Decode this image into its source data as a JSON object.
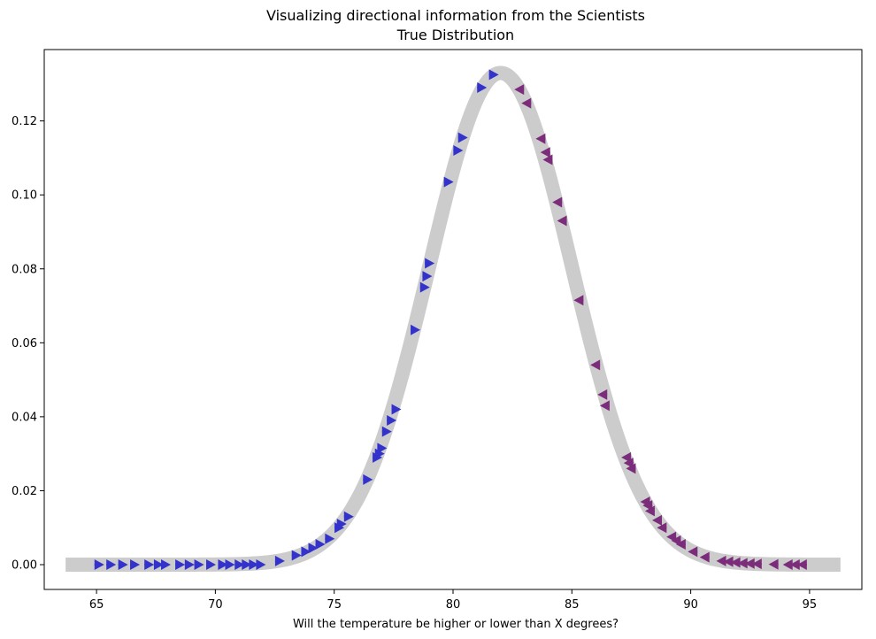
{
  "chart_data": {
    "type": "line",
    "title": "Visualizing directional information from the Scientists",
    "subtitle": "True Distribution",
    "xlabel": "Will the temperature be higher or lower than X degrees?",
    "ylabel": "",
    "xlim": [
      62.8,
      97.2
    ],
    "ylim": [
      -0.0067,
      0.1393
    ],
    "x_ticks": [
      65,
      70,
      75,
      80,
      85,
      90,
      95
    ],
    "y_ticks": [
      0.0,
      0.02,
      0.04,
      0.06,
      0.08,
      0.1,
      0.12
    ],
    "x_tick_labels": [
      "65",
      "70",
      "75",
      "80",
      "85",
      "90",
      "95"
    ],
    "y_tick_labels": [
      "0.00",
      "0.02",
      "0.04",
      "0.06",
      "0.08",
      "0.10",
      "0.12"
    ],
    "grid": false,
    "curve": {
      "kind": "normal-pdf",
      "mean": 82,
      "sd": 3,
      "x_range": [
        63.7,
        96.3
      ],
      "color": "#cccccc"
    },
    "series": [
      {
        "direction": "right",
        "color": "#3333cc",
        "points": [
          {
            "x": 65.1,
            "y": 0.0
          },
          {
            "x": 65.6,
            "y": 0.0
          },
          {
            "x": 66.1,
            "y": 0.0
          },
          {
            "x": 66.6,
            "y": 0.0
          },
          {
            "x": 67.2,
            "y": 0.0
          },
          {
            "x": 67.6,
            "y": 0.0
          },
          {
            "x": 67.9,
            "y": 0.0
          },
          {
            "x": 68.5,
            "y": 0.0
          },
          {
            "x": 68.9,
            "y": 0.0
          },
          {
            "x": 69.3,
            "y": 0.0
          },
          {
            "x": 69.8,
            "y": 0.0
          },
          {
            "x": 70.3,
            "y": 0.0
          },
          {
            "x": 70.6,
            "y": 0.0
          },
          {
            "x": 71.0,
            "y": 0.0
          },
          {
            "x": 71.3,
            "y": 0.0
          },
          {
            "x": 71.6,
            "y": 0.0
          },
          {
            "x": 71.9,
            "y": 0.0
          },
          {
            "x": 72.7,
            "y": 0.001
          },
          {
            "x": 73.4,
            "y": 0.0025
          },
          {
            "x": 73.8,
            "y": 0.0035
          },
          {
            "x": 74.1,
            "y": 0.0045
          },
          {
            "x": 74.4,
            "y": 0.0055
          },
          {
            "x": 74.8,
            "y": 0.007
          },
          {
            "x": 75.2,
            "y": 0.01
          },
          {
            "x": 75.3,
            "y": 0.011
          },
          {
            "x": 75.6,
            "y": 0.013
          },
          {
            "x": 76.4,
            "y": 0.023
          },
          {
            "x": 76.8,
            "y": 0.029
          },
          {
            "x": 76.9,
            "y": 0.03
          },
          {
            "x": 77.0,
            "y": 0.0315
          },
          {
            "x": 77.2,
            "y": 0.036
          },
          {
            "x": 77.4,
            "y": 0.039
          },
          {
            "x": 77.6,
            "y": 0.042
          },
          {
            "x": 78.4,
            "y": 0.0635
          },
          {
            "x": 78.8,
            "y": 0.075
          },
          {
            "x": 78.9,
            "y": 0.078
          },
          {
            "x": 79.0,
            "y": 0.0815
          },
          {
            "x": 79.8,
            "y": 0.1035
          },
          {
            "x": 80.2,
            "y": 0.112
          },
          {
            "x": 80.4,
            "y": 0.1155
          },
          {
            "x": 81.2,
            "y": 0.129
          },
          {
            "x": 81.7,
            "y": 0.1325
          }
        ]
      },
      {
        "direction": "left",
        "color": "#7b2d7b",
        "points": [
          {
            "x": 82.8,
            "y": 0.1285
          },
          {
            "x": 83.1,
            "y": 0.1248
          },
          {
            "x": 83.7,
            "y": 0.1152
          },
          {
            "x": 83.9,
            "y": 0.1115
          },
          {
            "x": 84.0,
            "y": 0.1095
          },
          {
            "x": 84.4,
            "y": 0.098
          },
          {
            "x": 84.6,
            "y": 0.093
          },
          {
            "x": 85.3,
            "y": 0.0715
          },
          {
            "x": 86.0,
            "y": 0.054
          },
          {
            "x": 86.3,
            "y": 0.046
          },
          {
            "x": 86.4,
            "y": 0.043
          },
          {
            "x": 87.3,
            "y": 0.029
          },
          {
            "x": 87.4,
            "y": 0.0275
          },
          {
            "x": 87.5,
            "y": 0.026
          },
          {
            "x": 88.1,
            "y": 0.017
          },
          {
            "x": 88.2,
            "y": 0.016
          },
          {
            "x": 88.3,
            "y": 0.0145
          },
          {
            "x": 88.6,
            "y": 0.012
          },
          {
            "x": 88.8,
            "y": 0.01
          },
          {
            "x": 89.2,
            "y": 0.0075
          },
          {
            "x": 89.4,
            "y": 0.0065
          },
          {
            "x": 89.6,
            "y": 0.0055
          },
          {
            "x": 90.1,
            "y": 0.0035
          },
          {
            "x": 90.6,
            "y": 0.002
          },
          {
            "x": 91.3,
            "y": 0.001
          },
          {
            "x": 91.6,
            "y": 0.0008
          },
          {
            "x": 91.9,
            "y": 0.0006
          },
          {
            "x": 92.2,
            "y": 0.0004
          },
          {
            "x": 92.5,
            "y": 0.0003
          },
          {
            "x": 92.8,
            "y": 0.0002
          },
          {
            "x": 93.5,
            "y": 0.0001
          },
          {
            "x": 94.1,
            "y": 0.0
          },
          {
            "x": 94.4,
            "y": 0.0
          },
          {
            "x": 94.7,
            "y": 0.0
          }
        ]
      }
    ]
  }
}
